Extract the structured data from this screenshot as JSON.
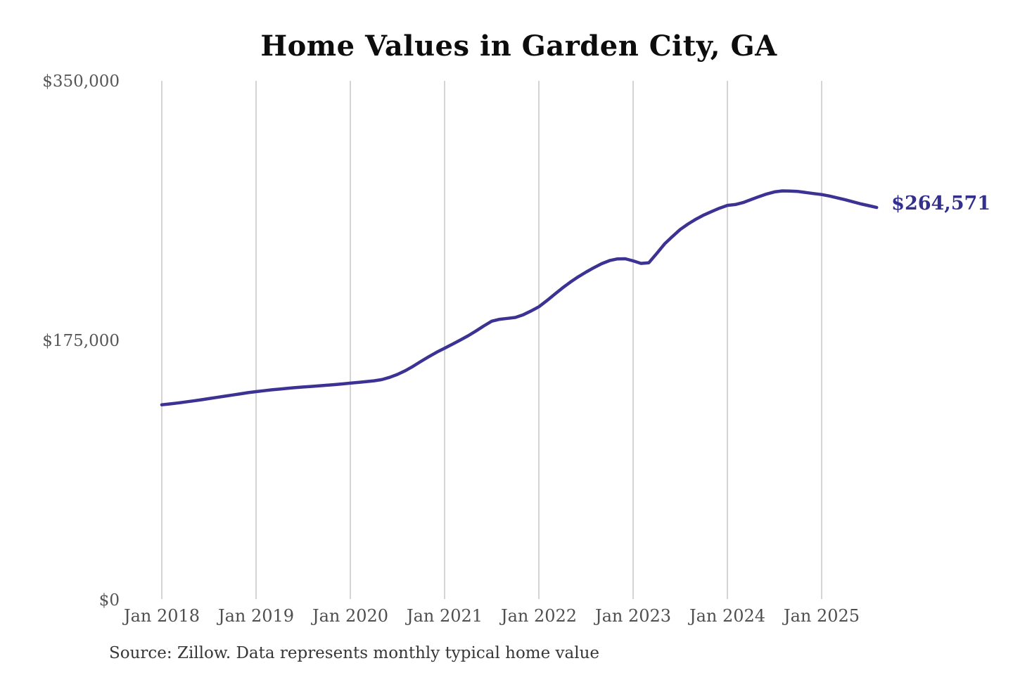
{
  "chart": {
    "title": "Home Values in Garden City, GA",
    "source_note": "Source: Zillow. Data represents monthly typical home value",
    "end_label": "$264,571",
    "colors": {
      "line": "#3b3294",
      "end_label": "#332f8e",
      "grid": "#cccccc",
      "title": "#0d0d0d",
      "axis_label": "#4f4f4f",
      "background": "#ffffff"
    }
  },
  "chart_data": {
    "type": "line",
    "title": "Home Values in Garden City, GA",
    "xlabel": "",
    "ylabel": "",
    "ylim": [
      0,
      350000
    ],
    "grid": "vertical-only",
    "legend": "none",
    "x_tick_labels": [
      "Jan 2018",
      "Jan 2019",
      "Jan 2020",
      "Jan 2021",
      "Jan 2022",
      "Jan 2023",
      "Jan 2024",
      "Jan 2025"
    ],
    "y_ticks": [
      {
        "value": 0,
        "label": "$0"
      },
      {
        "value": 175000,
        "label": "$175,000"
      },
      {
        "value": 350000,
        "label": "$350,000"
      }
    ],
    "series": [
      {
        "name": "Monthly typical home value",
        "interval": "monthly",
        "start_month": "2018-01",
        "end_month": "2025-08",
        "final_value": 264571,
        "end_value_label": "$264,571",
        "values": [
          131500,
          132100,
          132700,
          133400,
          134100,
          134900,
          135700,
          136500,
          137300,
          138100,
          138900,
          139700,
          140400,
          141000,
          141600,
          142100,
          142600,
          143100,
          143500,
          143900,
          144300,
          144700,
          145100,
          145600,
          146100,
          146600,
          147100,
          147700,
          148500,
          150000,
          152000,
          154500,
          157500,
          160800,
          164000,
          167000,
          169700,
          172400,
          175200,
          178100,
          181300,
          184700,
          187900,
          189200,
          189800,
          190400,
          192200,
          194800,
          197600,
          201700,
          206000,
          210300,
          214200,
          217800,
          221000,
          224000,
          226700,
          228800,
          229900,
          230000,
          228600,
          226900,
          227300,
          233500,
          240000,
          245000,
          249800,
          253500,
          256700,
          259500,
          261900,
          264100,
          266000,
          266600,
          267900,
          269900,
          271900,
          273700,
          275100,
          275800,
          275700,
          275400,
          274700,
          274000,
          273300,
          272300,
          271100,
          269800,
          268400,
          267000,
          265800,
          264571
        ]
      }
    ]
  }
}
